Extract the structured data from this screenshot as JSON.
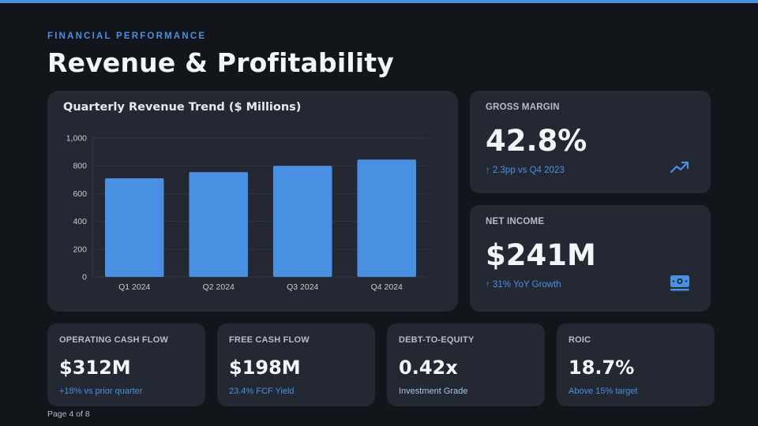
{
  "header": {
    "eyebrow": "FINANCIAL PERFORMANCE",
    "title": "Revenue & Profitability"
  },
  "colors": {
    "accent": "#4a90e2",
    "background": "#121519",
    "card": "#232833"
  },
  "chart_data": {
    "type": "bar",
    "title": "Quarterly Revenue Trend ($ Millions)",
    "categories": [
      "Q1 2024",
      "Q2 2024",
      "Q3 2024",
      "Q4 2024"
    ],
    "values": [
      710,
      755,
      800,
      845
    ],
    "yticks": [
      "0",
      "200",
      "400",
      "600",
      "800",
      "1,000"
    ],
    "ylim": [
      0,
      1000
    ],
    "grid": true,
    "color": "#4a90e2"
  },
  "metrics": {
    "gross_margin": {
      "label": "GROSS MARGIN",
      "value": "42.8%",
      "sub": "↑ 2.3pp vs Q4 2023",
      "icon": "trending-up-icon"
    },
    "net_income": {
      "label": "NET INCOME",
      "value": "$241M",
      "sub": "↑ 31% YoY Growth",
      "icon": "money-bill-icon"
    },
    "operating_cash_flow": {
      "label": "OPERATING CASH FLOW",
      "value": "$312M",
      "sub": "+18% vs prior quarter"
    },
    "free_cash_flow": {
      "label": "FREE CASH FLOW",
      "value": "$198M",
      "sub": "23.4% FCF Yield"
    },
    "debt_to_equity": {
      "label": "DEBT-TO-EQUITY",
      "value": "0.42x",
      "sub": "Investment Grade"
    },
    "roic": {
      "label": "ROIC",
      "value": "18.7%",
      "sub": "Above 15% target"
    }
  },
  "footer": {
    "page": "Page 4 of 8"
  }
}
